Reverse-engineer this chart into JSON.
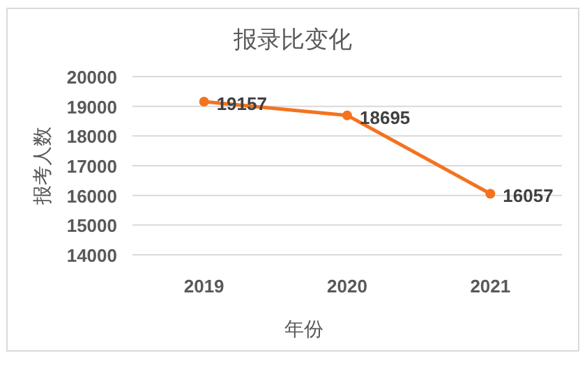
{
  "chart_data": {
    "type": "line",
    "title": "报录比变化",
    "xlabel": "年份",
    "ylabel": "报考人数",
    "categories": [
      "2019",
      "2020",
      "2021"
    ],
    "series": [
      {
        "color": "#f47320",
        "values": [
          19157,
          18695,
          16057
        ]
      }
    ],
    "ylim": [
      14000,
      20000
    ],
    "yticks": [
      14000,
      15000,
      16000,
      17000,
      18000,
      19000,
      20000
    ],
    "grid": "y",
    "marker": "circle",
    "data_labels": true
  }
}
